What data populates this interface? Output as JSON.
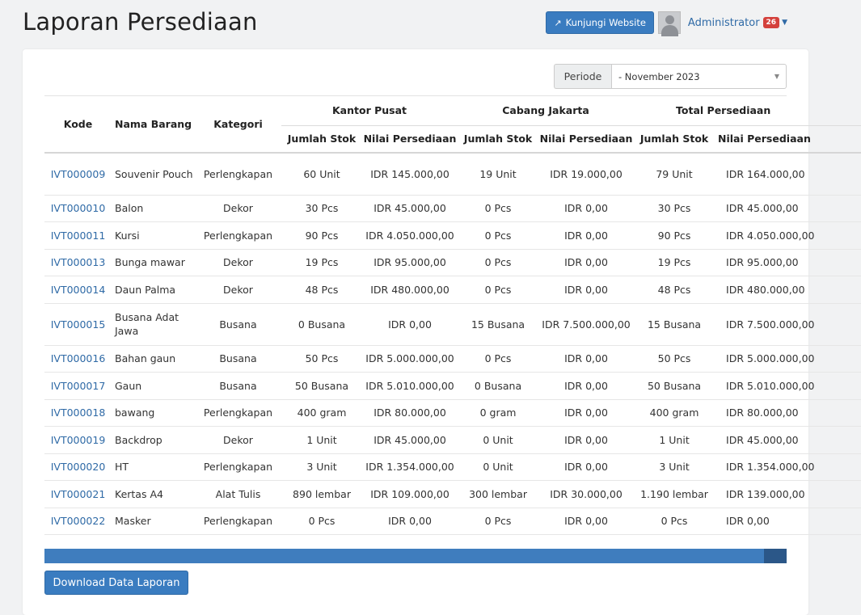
{
  "page": {
    "title": "Laporan Persediaan"
  },
  "topbar": {
    "visit_label": "Kunjungi Website",
    "visit_icon": "external-link-icon",
    "user_name": "Administrator",
    "notification_count": "26"
  },
  "filter": {
    "periode_label": "Periode",
    "periode_value": "- November 2023"
  },
  "table": {
    "headers": {
      "kode": "Kode",
      "nama": "Nama Barang",
      "kategori": "Kategori",
      "groups": [
        "Kantor Pusat",
        "Cabang Jakarta",
        "Total Persediaan"
      ],
      "sub": [
        "Jumlah Stok",
        "Nilai Persediaan",
        "Jumlah Stok",
        "Nilai Persediaan",
        "Jumlah Stok",
        "Nilai Persediaan"
      ]
    },
    "rows": [
      {
        "kode": "IVT000009",
        "nama": "Souvenir Pouch",
        "kategori": "Perlengkapan",
        "kp_stok": "60 Unit",
        "kp_nilai": "IDR 145.000,00",
        "cj_stok": "19 Unit",
        "cj_nilai": "IDR 19.000,00",
        "tot_stok": "79 Unit",
        "tot_nilai": "IDR 164.000,00"
      },
      {
        "kode": "IVT000010",
        "nama": "Balon",
        "kategori": "Dekor",
        "kp_stok": "30 Pcs",
        "kp_nilai": "IDR 45.000,00",
        "cj_stok": "0 Pcs",
        "cj_nilai": "IDR 0,00",
        "tot_stok": "30 Pcs",
        "tot_nilai": "IDR 45.000,00"
      },
      {
        "kode": "IVT000011",
        "nama": "Kursi",
        "kategori": "Perlengkapan",
        "kp_stok": "90 Pcs",
        "kp_nilai": "IDR 4.050.000,00",
        "cj_stok": "0 Pcs",
        "cj_nilai": "IDR 0,00",
        "tot_stok": "90 Pcs",
        "tot_nilai": "IDR 4.050.000,00"
      },
      {
        "kode": "IVT000013",
        "nama": "Bunga mawar",
        "kategori": "Dekor",
        "kp_stok": "19 Pcs",
        "kp_nilai": "IDR 95.000,00",
        "cj_stok": "0 Pcs",
        "cj_nilai": "IDR 0,00",
        "tot_stok": "19 Pcs",
        "tot_nilai": "IDR 95.000,00"
      },
      {
        "kode": "IVT000014",
        "nama": "Daun Palma",
        "kategori": "Dekor",
        "kp_stok": "48 Pcs",
        "kp_nilai": "IDR 480.000,00",
        "cj_stok": "0 Pcs",
        "cj_nilai": "IDR 0,00",
        "tot_stok": "48 Pcs",
        "tot_nilai": "IDR 480.000,00"
      },
      {
        "kode": "IVT000015",
        "nama": "Busana Adat Jawa",
        "kategori": "Busana",
        "kp_stok": "0 Busana",
        "kp_nilai": "IDR 0,00",
        "cj_stok": "15 Busana",
        "cj_nilai": "IDR 7.500.000,00",
        "tot_stok": "15 Busana",
        "tot_nilai": "IDR 7.500.000,00"
      },
      {
        "kode": "IVT000016",
        "nama": "Bahan gaun",
        "kategori": "Busana",
        "kp_stok": "50 Pcs",
        "kp_nilai": "IDR 5.000.000,00",
        "cj_stok": "0 Pcs",
        "cj_nilai": "IDR 0,00",
        "tot_stok": "50 Pcs",
        "tot_nilai": "IDR 5.000.000,00"
      },
      {
        "kode": "IVT000017",
        "nama": "Gaun",
        "kategori": "Busana",
        "kp_stok": "50 Busana",
        "kp_nilai": "IDR 5.010.000,00",
        "cj_stok": "0 Busana",
        "cj_nilai": "IDR 0,00",
        "tot_stok": "50 Busana",
        "tot_nilai": "IDR 5.010.000,00"
      },
      {
        "kode": "IVT000018",
        "nama": "bawang",
        "kategori": "Perlengkapan",
        "kp_stok": "400 gram",
        "kp_nilai": "IDR 80.000,00",
        "cj_stok": "0 gram",
        "cj_nilai": "IDR 0,00",
        "tot_stok": "400 gram",
        "tot_nilai": "IDR 80.000,00"
      },
      {
        "kode": "IVT000019",
        "nama": "Backdrop",
        "kategori": "Dekor",
        "kp_stok": "1 Unit",
        "kp_nilai": "IDR 45.000,00",
        "cj_stok": "0 Unit",
        "cj_nilai": "IDR 0,00",
        "tot_stok": "1 Unit",
        "tot_nilai": "IDR 45.000,00"
      },
      {
        "kode": "IVT000020",
        "nama": "HT",
        "kategori": "Perlengkapan",
        "kp_stok": "3 Unit",
        "kp_nilai": "IDR 1.354.000,00",
        "cj_stok": "0 Unit",
        "cj_nilai": "IDR 0,00",
        "tot_stok": "3 Unit",
        "tot_nilai": "IDR 1.354.000,00"
      },
      {
        "kode": "IVT000021",
        "nama": "Kertas A4",
        "kategori": "Alat Tulis",
        "kp_stok": "890 lembar",
        "kp_nilai": "IDR 109.000,00",
        "cj_stok": "300 lembar",
        "cj_nilai": "IDR 30.000,00",
        "tot_stok": "1.190 lembar",
        "tot_nilai": "IDR 139.000,00"
      },
      {
        "kode": "IVT000022",
        "nama": "Masker",
        "kategori": "Perlengkapan",
        "kp_stok": "0 Pcs",
        "kp_nilai": "IDR 0,00",
        "cj_stok": "0 Pcs",
        "cj_nilai": "IDR 0,00",
        "tot_stok": "0 Pcs",
        "tot_nilai": "IDR 0,00"
      }
    ]
  },
  "actions": {
    "download_label": "Download Data Laporan"
  },
  "colors": {
    "primary": "#3a7cc0",
    "link": "#2f6aa6",
    "badge": "#d4413c"
  }
}
